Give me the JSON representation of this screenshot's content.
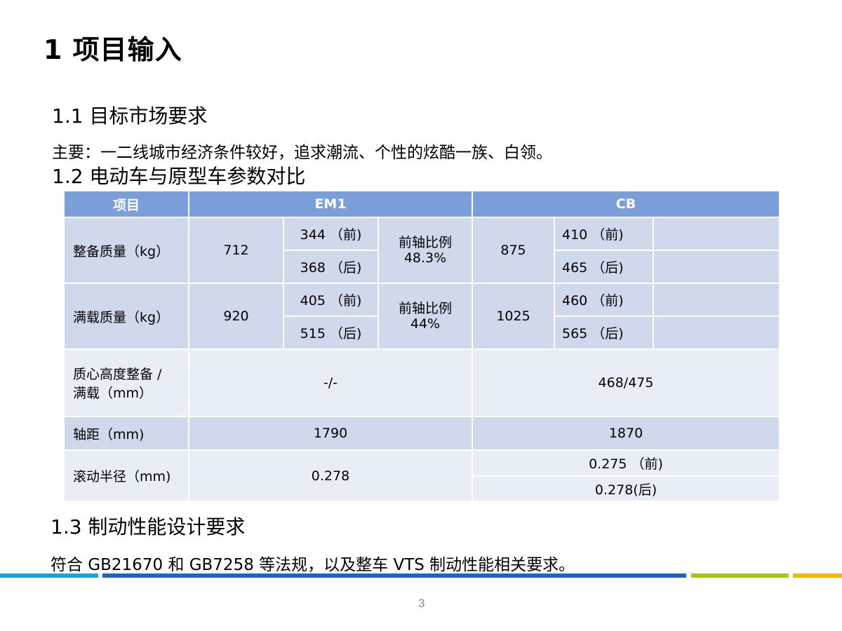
{
  "title": "1  项目输入",
  "section1": {
    "heading": "1.1 目标市场要求",
    "text": "主要：一二线城市经济条件较好，追求潮流、个性的炫酷一族、白领。"
  },
  "section2": {
    "heading": "1.2 电动车与原型车参数对比"
  },
  "table": {
    "headers": [
      "项目",
      "EM1",
      "CB"
    ],
    "curb": {
      "label": "整备质量（kg）",
      "em1_total": "712",
      "em1_front": "344 （前)",
      "em1_rear": "368 （后)",
      "em1_ratio_label": "前轴比例",
      "em1_ratio_value": "48.3%",
      "cb_total": "875",
      "cb_front": "410 （前)",
      "cb_rear": "465 （后)"
    },
    "full": {
      "label": "满载质量（kg）",
      "em1_total": "920",
      "em1_front": "405 （前)",
      "em1_rear": "515 （后)",
      "em1_ratio_label": "前轴比例",
      "em1_ratio_value": "44%",
      "cb_total": "1025",
      "cb_front": "460 （前)",
      "cb_rear": "565 （后)"
    },
    "cog": {
      "label_line1": "质心高度整备 /",
      "label_line2": "满载（mm）",
      "em1": "-/-",
      "cb": "468/475"
    },
    "wheelbase": {
      "label": "轴距（mm)",
      "em1": "1790",
      "cb": "1870"
    },
    "radius": {
      "label": "滚动半径（mm)",
      "em1": "0.278",
      "cb_front": "0.275 （前)",
      "cb_rear": "0.278(后)"
    }
  },
  "section3": {
    "heading": "1.3 制动性能设计要求",
    "text": "符合 GB21670 和 GB7258 等法规，以及整车 VTS 制动性能相关要求。"
  },
  "page_number": "3",
  "colors": {
    "header": "#7b9fda",
    "row_dark": "#d0d8ec",
    "row_light": "#e9edf6",
    "bar_lightblue": "#1ea0dc",
    "bar_blue": "#1e64c8",
    "bar_green": "#a6c814",
    "bar_orange": "#f5b400"
  }
}
